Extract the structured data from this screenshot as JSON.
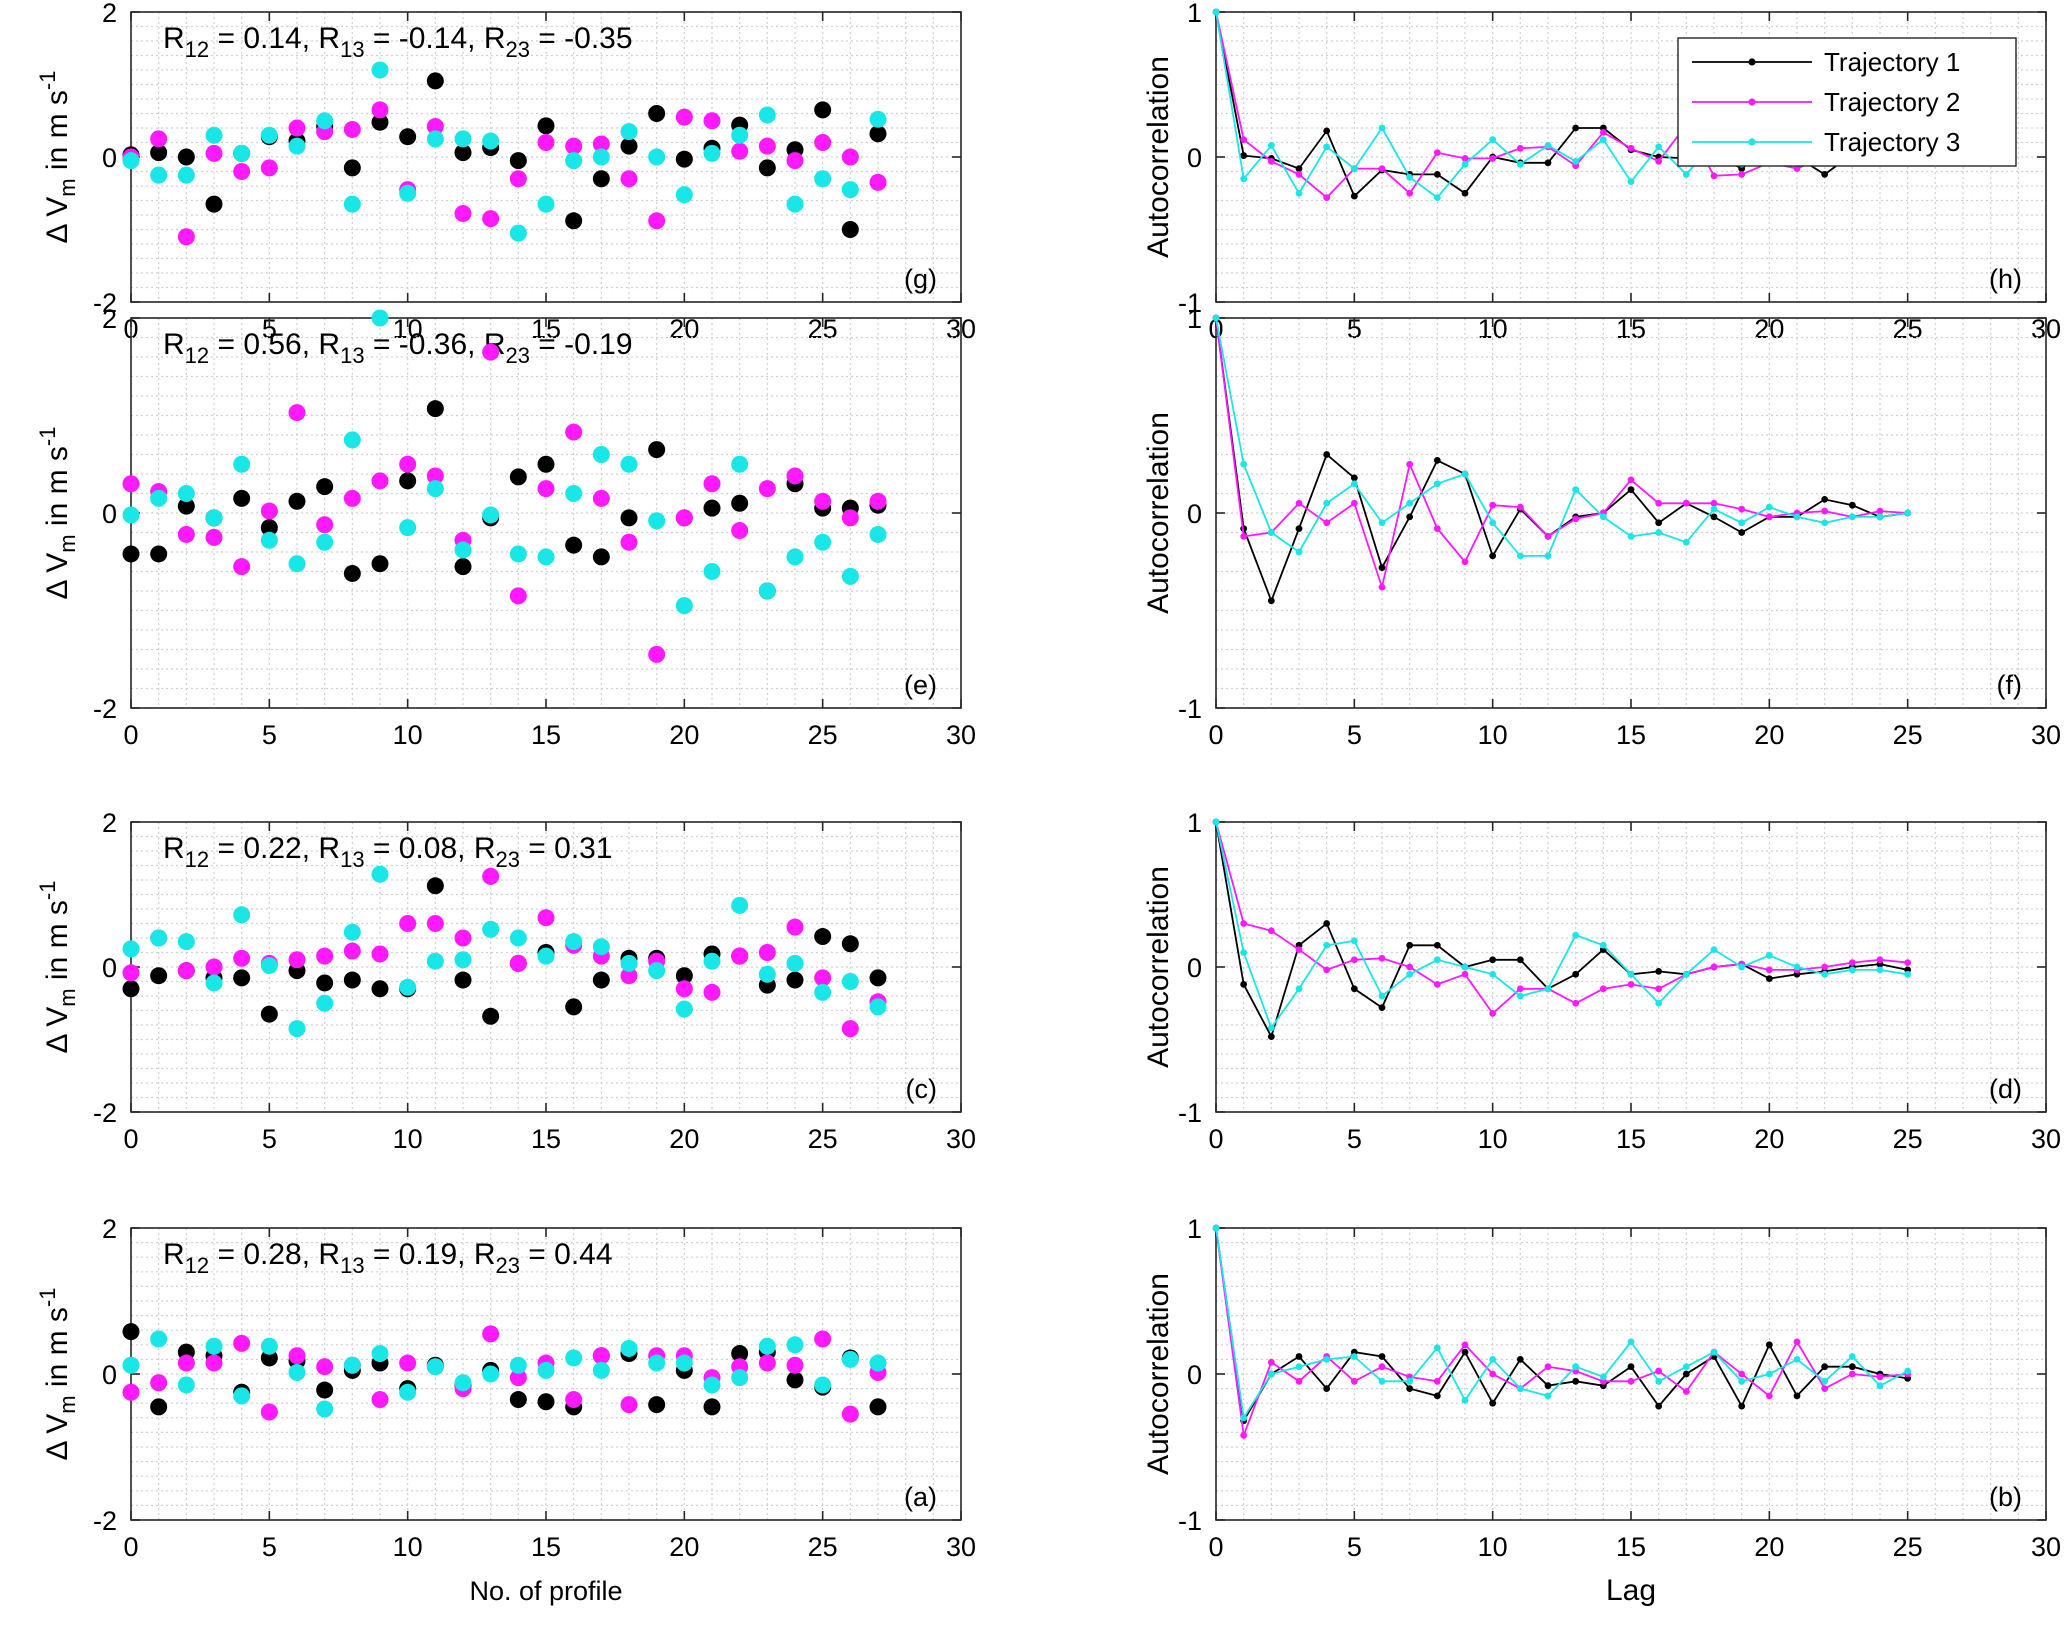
{
  "legend": {
    "entries": [
      {
        "label": "Trajectory 1",
        "color": "#000000"
      },
      {
        "label": "Trajectory 2",
        "color": "#ff19ff"
      },
      {
        "label": "Trajectory 3",
        "color": "#19e6e6"
      }
    ],
    "placement": "top-right of panel (h)"
  },
  "chart_data": [
    {
      "panel": "(g)",
      "type": "scatter",
      "ylabel": "Δ V_m in m s^-1",
      "xlabel": "",
      "xlim": [
        0,
        30
      ],
      "ylim": [
        -2,
        2
      ],
      "xticks": [
        "0",
        "5",
        "10",
        "15",
        "20",
        "25",
        "30"
      ],
      "yticks": [
        "-2",
        "0",
        "2"
      ],
      "annotation": {
        "r12": "0.14",
        "r13": "-0.14",
        "r23": "-0.35"
      },
      "grid": "minor dotted",
      "series": [
        {
          "name": "Trajectory 1",
          "values": [
            0.03,
            0.06,
            0.0,
            -0.65,
            0.05,
            0.28,
            0.22,
            0.42,
            -0.15,
            0.48,
            0.28,
            1.05,
            0.06,
            0.13,
            -0.05,
            0.43,
            -0.88,
            -0.3,
            0.15,
            0.6,
            -0.03,
            0.12,
            0.44,
            -0.15,
            0.1,
            0.65,
            -1.0,
            0.32
          ]
        },
        {
          "name": "Trajectory 2",
          "values": [
            0.0,
            0.25,
            -1.1,
            0.05,
            -0.2,
            -0.15,
            0.4,
            0.35,
            0.38,
            0.65,
            -0.45,
            0.42,
            -0.78,
            -0.85,
            -0.3,
            0.2,
            0.15,
            0.18,
            -0.3,
            -0.88,
            0.55,
            0.5,
            0.08,
            0.15,
            -0.05,
            0.2,
            0.0,
            -0.35
          ]
        },
        {
          "name": "Trajectory 3",
          "values": [
            -0.05,
            -0.25,
            -0.25,
            0.3,
            0.05,
            0.3,
            0.15,
            0.5,
            -0.65,
            1.2,
            -0.5,
            0.25,
            0.25,
            0.22,
            -1.05,
            -0.65,
            -0.05,
            0.0,
            0.35,
            0.0,
            -0.52,
            0.05,
            0.3,
            0.58,
            -0.65,
            -0.3,
            -0.45,
            0.52
          ]
        }
      ]
    },
    {
      "panel": "(h)",
      "type": "line",
      "ylabel": "Autocorrelation",
      "xlabel": "",
      "xlim": [
        0,
        30
      ],
      "ylim": [
        -1,
        1
      ],
      "xticks": [
        "0",
        "5",
        "10",
        "15",
        "20",
        "25",
        "30"
      ],
      "yticks": [
        "-1",
        "0",
        "1"
      ],
      "grid": "minor dotted",
      "series": [
        {
          "name": "Trajectory 1",
          "values": [
            1,
            0.01,
            -0.01,
            -0.08,
            0.18,
            -0.27,
            -0.09,
            -0.12,
            -0.12,
            -0.25,
            0.0,
            -0.04,
            -0.04,
            0.2,
            0.2,
            0.05,
            0.0,
            -0.01,
            0.02,
            -0.08,
            0.08,
            0.0,
            -0.12,
            0.02,
            0.0,
            -0.03
          ]
        },
        {
          "name": "Trajectory 2",
          "values": [
            1,
            0.12,
            -0.03,
            -0.12,
            -0.28,
            -0.08,
            -0.08,
            -0.25,
            0.03,
            -0.01,
            -0.01,
            0.06,
            0.07,
            -0.06,
            0.17,
            0.06,
            -0.03,
            0.22,
            -0.13,
            -0.12,
            -0.04,
            -0.08,
            0.0,
            -0.04,
            -0.03,
            0.05
          ]
        },
        {
          "name": "Trajectory 3",
          "values": [
            1,
            -0.15,
            0.08,
            -0.25,
            0.07,
            -0.08,
            0.2,
            -0.14,
            -0.28,
            -0.05,
            0.12,
            -0.05,
            0.08,
            -0.03,
            0.12,
            -0.17,
            0.07,
            -0.12,
            0.1,
            -0.05,
            0.1,
            -0.04,
            0.05,
            0.0,
            0.02,
            0.01
          ]
        }
      ]
    },
    {
      "panel": "(e)",
      "type": "scatter",
      "ylabel": "Δ V_m in m s^-1",
      "xlabel": "",
      "xlim": [
        0,
        30
      ],
      "ylim": [
        -2,
        2
      ],
      "xticks": [
        "0",
        "5",
        "10",
        "15",
        "20",
        "25",
        "30"
      ],
      "yticks": [
        "-2",
        "0",
        "2"
      ],
      "annotation": {
        "r12": "0.56",
        "r13": "-0.36",
        "r23": "-0.19"
      },
      "grid": "minor dotted",
      "series": [
        {
          "name": "Trajectory 1",
          "values": [
            -0.42,
            -0.42,
            0.07,
            -0.05,
            0.15,
            -0.15,
            0.12,
            0.27,
            -0.62,
            -0.52,
            0.33,
            1.07,
            -0.55,
            -0.05,
            0.37,
            0.5,
            -0.33,
            -0.45,
            -0.05,
            0.65,
            -0.05,
            0.05,
            0.1,
            -0.8,
            0.3,
            0.05,
            0.05,
            0.08
          ]
        },
        {
          "name": "Trajectory 2",
          "values": [
            0.3,
            0.22,
            -0.22,
            -0.25,
            -0.55,
            0.02,
            1.03,
            -0.12,
            0.15,
            0.33,
            0.5,
            0.38,
            -0.28,
            1.65,
            -0.85,
            0.25,
            0.83,
            0.15,
            -0.3,
            -1.45,
            -0.05,
            0.3,
            -0.18,
            0.25,
            0.38,
            0.12,
            -0.05,
            0.12
          ]
        },
        {
          "name": "Trajectory 3",
          "values": [
            -0.02,
            0.15,
            0.2,
            -0.05,
            0.5,
            -0.28,
            -0.52,
            -0.3,
            0.75,
            2.0,
            -0.15,
            0.25,
            -0.38,
            -0.02,
            -0.42,
            -0.45,
            0.2,
            0.6,
            0.5,
            -0.08,
            -0.95,
            -0.6,
            0.5,
            -0.8,
            -0.45,
            -0.3,
            -0.65,
            -0.22
          ]
        }
      ]
    },
    {
      "panel": "(f)",
      "type": "line",
      "ylabel": "Autocorrelation",
      "xlabel": "",
      "xlim": [
        0,
        30
      ],
      "ylim": [
        -1,
        1
      ],
      "xticks": [
        "0",
        "5",
        "10",
        "15",
        "20",
        "25",
        "30"
      ],
      "yticks": [
        "-1",
        "0",
        "1"
      ],
      "grid": "minor dotted",
      "series": [
        {
          "name": "Trajectory 1",
          "values": [
            1,
            -0.08,
            -0.45,
            -0.08,
            0.3,
            0.18,
            -0.28,
            -0.02,
            0.27,
            0.2,
            -0.22,
            0.02,
            -0.12,
            -0.02,
            0.0,
            0.12,
            -0.05,
            0.05,
            -0.02,
            -0.1,
            -0.02,
            -0.02,
            0.07,
            0.04,
            -0.02,
            0.0
          ]
        },
        {
          "name": "Trajectory 2",
          "values": [
            1,
            -0.12,
            -0.1,
            0.05,
            -0.05,
            0.05,
            -0.38,
            0.25,
            -0.08,
            -0.25,
            0.04,
            0.03,
            -0.12,
            -0.03,
            0.0,
            0.17,
            0.05,
            0.05,
            0.05,
            0.02,
            -0.02,
            0.0,
            0.01,
            -0.02,
            0.01,
            0.0
          ]
        },
        {
          "name": "Trajectory 3",
          "values": [
            1,
            0.25,
            -0.1,
            -0.2,
            0.05,
            0.15,
            -0.05,
            0.05,
            0.15,
            0.2,
            -0.05,
            -0.22,
            -0.22,
            0.12,
            -0.02,
            -0.12,
            -0.1,
            -0.15,
            0.02,
            -0.05,
            0.03,
            -0.02,
            -0.05,
            -0.02,
            -0.02,
            0.0
          ]
        }
      ]
    },
    {
      "panel": "(c)",
      "type": "scatter",
      "ylabel": "Δ V_m in m s^-1",
      "xlabel": "",
      "xlim": [
        0,
        30
      ],
      "ylim": [
        -2,
        2
      ],
      "xticks": [
        "0",
        "5",
        "10",
        "15",
        "20",
        "25",
        "30"
      ],
      "yticks": [
        "-2",
        "0",
        "2"
      ],
      "annotation": {
        "r12": "0.22",
        "r13": "0.08",
        "r23": "0.31"
      },
      "grid": "minor dotted",
      "series": [
        {
          "name": "Trajectory 1",
          "values": [
            -0.3,
            -0.12,
            -0.05,
            -0.15,
            -0.15,
            -0.65,
            -0.05,
            -0.22,
            -0.18,
            -0.3,
            -0.3,
            1.12,
            -0.18,
            -0.68,
            0.05,
            0.2,
            -0.55,
            -0.18,
            0.12,
            0.12,
            -0.12,
            0.18,
            0.15,
            -0.25,
            -0.18,
            0.42,
            0.32,
            -0.15
          ]
        },
        {
          "name": "Trajectory 2",
          "values": [
            -0.08,
            0.4,
            -0.05,
            0.0,
            0.12,
            0.05,
            0.1,
            0.15,
            0.22,
            0.18,
            0.6,
            0.6,
            0.4,
            1.25,
            0.05,
            0.68,
            0.3,
            0.15,
            -0.12,
            0.08,
            -0.3,
            -0.35,
            0.15,
            0.2,
            0.55,
            -0.15,
            -0.85,
            -0.48
          ]
        },
        {
          "name": "Trajectory 3",
          "values": [
            0.25,
            0.4,
            0.35,
            -0.22,
            0.72,
            0.02,
            -0.85,
            -0.5,
            0.48,
            1.28,
            -0.28,
            0.08,
            0.1,
            0.52,
            0.4,
            0.15,
            0.35,
            0.28,
            0.05,
            -0.05,
            -0.58,
            0.08,
            0.85,
            -0.1,
            0.05,
            -0.35,
            -0.2,
            -0.55
          ]
        }
      ]
    },
    {
      "panel": "(d)",
      "type": "line",
      "ylabel": "Autocorrelation",
      "xlabel": "",
      "xlim": [
        0,
        30
      ],
      "ylim": [
        -1,
        1
      ],
      "xticks": [
        "0",
        "5",
        "10",
        "15",
        "20",
        "25",
        "30"
      ],
      "yticks": [
        "-1",
        "0",
        "1"
      ],
      "grid": "minor dotted",
      "series": [
        {
          "name": "Trajectory 1",
          "values": [
            1,
            -0.12,
            -0.48,
            0.15,
            0.3,
            -0.15,
            -0.28,
            0.15,
            0.15,
            0.0,
            0.05,
            0.05,
            -0.15,
            -0.05,
            0.12,
            -0.05,
            -0.03,
            -0.05,
            0.0,
            0.02,
            -0.08,
            -0.05,
            -0.03,
            0.0,
            0.02,
            -0.02
          ]
        },
        {
          "name": "Trajectory 2",
          "values": [
            1,
            0.3,
            0.25,
            0.12,
            -0.02,
            0.05,
            0.06,
            0.0,
            -0.12,
            -0.05,
            -0.32,
            -0.15,
            -0.15,
            -0.25,
            -0.15,
            -0.12,
            -0.15,
            -0.05,
            0.0,
            0.02,
            -0.02,
            -0.02,
            0.0,
            0.03,
            0.05,
            0.03
          ]
        },
        {
          "name": "Trajectory 3",
          "values": [
            1,
            0.1,
            -0.42,
            -0.15,
            0.15,
            0.18,
            -0.2,
            -0.05,
            0.05,
            0.0,
            -0.05,
            -0.2,
            -0.15,
            0.22,
            0.15,
            -0.05,
            -0.25,
            -0.05,
            0.12,
            0.0,
            0.08,
            0.0,
            -0.05,
            -0.02,
            -0.02,
            -0.05
          ]
        }
      ]
    },
    {
      "panel": "(a)",
      "type": "scatter",
      "ylabel": "Δ V_m in m s^-1",
      "xlabel": "No. of profile",
      "xlim": [
        0,
        30
      ],
      "ylim": [
        -2,
        2
      ],
      "xticks": [
        "0",
        "5",
        "10",
        "15",
        "20",
        "25",
        "30"
      ],
      "yticks": [
        "-2",
        "0",
        "2"
      ],
      "annotation": {
        "r12": "0.28",
        "r13": "0.19",
        "r23": "0.44"
      },
      "grid": "minor dotted",
      "series": [
        {
          "name": "Trajectory 1",
          "values": [
            0.58,
            -0.45,
            0.3,
            0.25,
            -0.25,
            0.22,
            0.18,
            -0.22,
            0.05,
            0.15,
            -0.2,
            0.12,
            -0.15,
            0.05,
            -0.35,
            -0.38,
            -0.45,
            0.25,
            0.28,
            -0.42,
            0.05,
            -0.45,
            0.28,
            0.3,
            -0.08,
            -0.18,
            0.22,
            -0.45
          ]
        },
        {
          "name": "Trajectory 2",
          "values": [
            -0.25,
            -0.12,
            0.15,
            0.15,
            0.42,
            -0.52,
            0.25,
            0.1,
            0.12,
            -0.35,
            0.15,
            0.1,
            -0.2,
            0.55,
            -0.05,
            0.15,
            -0.35,
            0.25,
            -0.42,
            0.25,
            0.25,
            -0.05,
            0.1,
            0.15,
            0.12,
            0.48,
            -0.55,
            0.02
          ]
        },
        {
          "name": "Trajectory 3",
          "values": [
            0.12,
            0.48,
            -0.15,
            0.38,
            -0.3,
            0.38,
            0.02,
            -0.48,
            0.12,
            0.28,
            -0.25,
            0.1,
            -0.12,
            0.0,
            0.12,
            0.05,
            0.22,
            0.05,
            0.35,
            0.15,
            0.15,
            -0.15,
            -0.05,
            0.38,
            0.4,
            -0.15,
            0.2,
            0.15
          ]
        }
      ]
    },
    {
      "panel": "(b)",
      "type": "line",
      "ylabel": "Autocorrelation",
      "xlabel": "Lag",
      "xlim": [
        0,
        30
      ],
      "ylim": [
        -1,
        1
      ],
      "xticks": [
        "0",
        "5",
        "10",
        "15",
        "20",
        "25",
        "30"
      ],
      "yticks": [
        "-1",
        "0",
        "1"
      ],
      "grid": "minor dotted",
      "series": [
        {
          "name": "Trajectory 1",
          "values": [
            1,
            -0.32,
            0.0,
            0.12,
            -0.1,
            0.15,
            0.12,
            -0.1,
            -0.15,
            0.15,
            -0.2,
            0.1,
            -0.08,
            -0.05,
            -0.08,
            0.05,
            -0.22,
            0.0,
            0.12,
            -0.22,
            0.2,
            -0.15,
            0.05,
            0.05,
            0.0,
            -0.03
          ]
        },
        {
          "name": "Trajectory 2",
          "values": [
            1,
            -0.42,
            0.08,
            -0.05,
            0.12,
            -0.05,
            0.05,
            -0.02,
            -0.05,
            0.2,
            0.0,
            -0.1,
            0.05,
            0.02,
            -0.05,
            -0.05,
            0.02,
            -0.12,
            0.15,
            0.0,
            -0.15,
            0.22,
            -0.1,
            0.0,
            -0.02,
            0.0
          ]
        },
        {
          "name": "Trajectory 3",
          "values": [
            1,
            -0.3,
            0.0,
            0.05,
            0.1,
            0.12,
            -0.05,
            -0.05,
            0.18,
            -0.18,
            0.1,
            -0.1,
            -0.15,
            0.05,
            -0.02,
            0.22,
            -0.05,
            0.05,
            0.15,
            -0.05,
            0.0,
            0.1,
            -0.05,
            0.12,
            -0.08,
            0.02
          ]
        }
      ]
    }
  ]
}
